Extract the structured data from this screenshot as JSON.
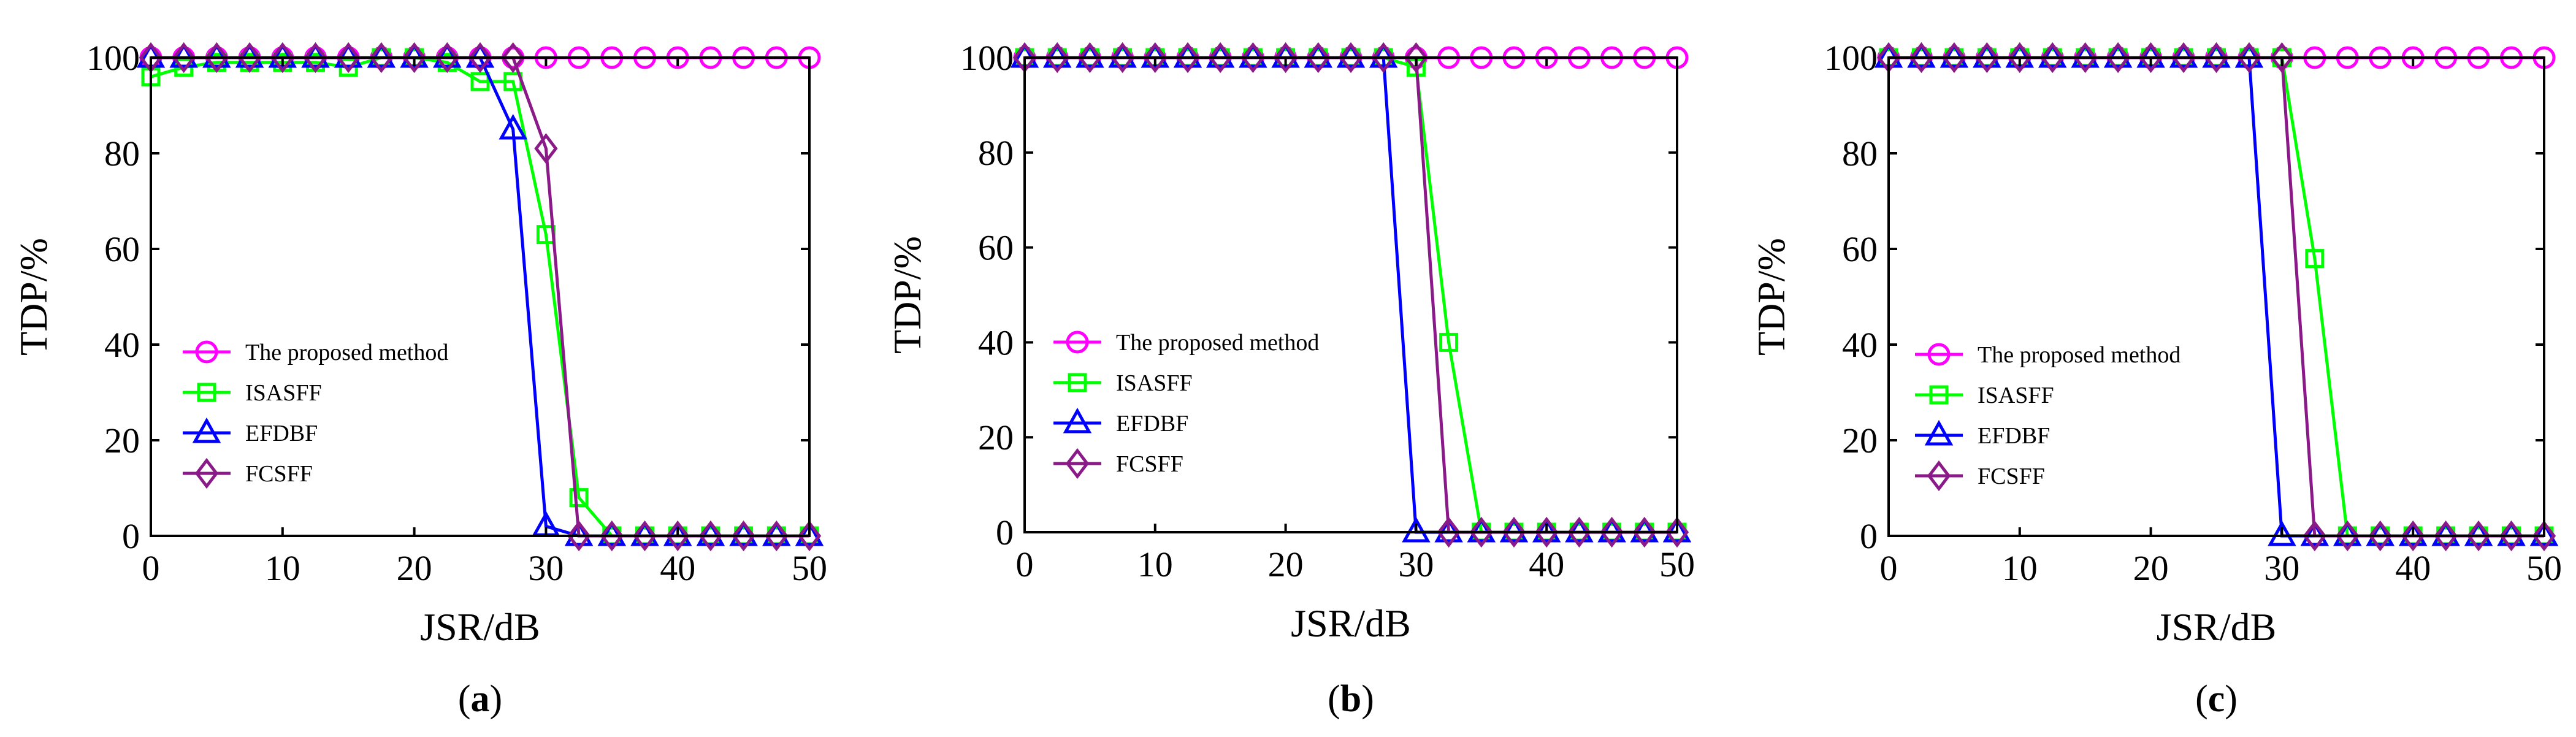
{
  "chart_data": [
    {
      "type": "line",
      "caption": {
        "open": "(",
        "letter": "a",
        "close": ")"
      },
      "xlabel": "JSR/dB",
      "ylabel": "TDP/%",
      "xlim": [
        0,
        50
      ],
      "ylim": [
        0,
        100
      ],
      "xticks": [
        0,
        10,
        20,
        30,
        40,
        50
      ],
      "yticks": [
        0,
        20,
        40,
        60,
        80,
        100
      ],
      "grid": false,
      "legend_position": "left",
      "series": [
        {
          "name": "The proposed method",
          "color": "#ff00ff",
          "marker": "circle",
          "x": [
            0,
            2.5,
            5,
            7.5,
            10,
            12.5,
            15,
            17.5,
            20,
            22.5,
            25,
            27.5,
            30,
            32.5,
            35,
            37.5,
            40,
            42.5,
            45,
            47.5,
            50
          ],
          "y": [
            100,
            100,
            100,
            100,
            100,
            100,
            100,
            100,
            100,
            100,
            100,
            100,
            100,
            100,
            100,
            100,
            100,
            100,
            100,
            100,
            100
          ]
        },
        {
          "name": "ISASFF",
          "color": "#00ff00",
          "marker": "square",
          "x": [
            0,
            2.5,
            5,
            7.5,
            10,
            12.5,
            15,
            17.5,
            20,
            22.5,
            25,
            27.5,
            30,
            32.5,
            35,
            37.5,
            40,
            42.5,
            45,
            47.5,
            50
          ],
          "y": [
            96,
            98,
            99,
            99,
            99,
            99,
            98,
            100,
            100,
            99,
            95,
            95,
            63,
            8,
            0,
            0,
            0,
            0,
            0,
            0,
            0
          ]
        },
        {
          "name": "EFDBF",
          "color": "#0000ff",
          "marker": "triangle",
          "x": [
            0,
            2.5,
            5,
            7.5,
            10,
            12.5,
            15,
            17.5,
            20,
            22.5,
            25,
            27.5,
            30,
            32.5,
            35,
            37.5,
            40,
            42.5,
            45,
            47.5,
            50
          ],
          "y": [
            100,
            100,
            100,
            100,
            100,
            100,
            100,
            100,
            100,
            100,
            100,
            85,
            2,
            0,
            0,
            0,
            0,
            0,
            0,
            0,
            0
          ]
        },
        {
          "name": "FCSFF",
          "color": "#8b1a89",
          "marker": "diamond",
          "x": [
            0,
            2.5,
            5,
            7.5,
            10,
            12.5,
            15,
            17.5,
            20,
            22.5,
            25,
            27.5,
            30,
            32.5,
            35,
            37.5,
            40,
            42.5,
            45,
            47.5,
            50
          ],
          "y": [
            100,
            100,
            100,
            100,
            100,
            100,
            100,
            100,
            100,
            100,
            100,
            100,
            81,
            0,
            0,
            0,
            0,
            0,
            0,
            0,
            0
          ]
        }
      ]
    },
    {
      "type": "line",
      "caption": {
        "open": "(",
        "letter": "b",
        "close": ")"
      },
      "xlabel": "JSR/dB",
      "ylabel": "TDP/%",
      "xlim": [
        0,
        50
      ],
      "ylim": [
        0,
        100
      ],
      "xticks": [
        0,
        10,
        20,
        30,
        40,
        50
      ],
      "yticks": [
        0,
        20,
        40,
        60,
        80,
        100
      ],
      "grid": false,
      "legend_position": "left",
      "series": [
        {
          "name": "The proposed method",
          "color": "#ff00ff",
          "marker": "circle",
          "x": [
            0,
            2.5,
            5,
            7.5,
            10,
            12.5,
            15,
            17.5,
            20,
            22.5,
            25,
            27.5,
            30,
            32.5,
            35,
            37.5,
            40,
            42.5,
            45,
            47.5,
            50
          ],
          "y": [
            100,
            100,
            100,
            100,
            100,
            100,
            100,
            100,
            100,
            100,
            100,
            100,
            100,
            100,
            100,
            100,
            100,
            100,
            100,
            100,
            100
          ]
        },
        {
          "name": "ISASFF",
          "color": "#00ff00",
          "marker": "square",
          "x": [
            0,
            2.5,
            5,
            7.5,
            10,
            12.5,
            15,
            17.5,
            20,
            22.5,
            25,
            27.5,
            30,
            32.5,
            35,
            37.5,
            40,
            42.5,
            45,
            47.5,
            50
          ],
          "y": [
            100,
            100,
            100,
            100,
            100,
            100,
            100,
            100,
            100,
            100,
            100,
            100,
            98,
            40,
            0,
            0,
            0,
            0,
            0,
            0,
            0
          ]
        },
        {
          "name": "EFDBF",
          "color": "#0000ff",
          "marker": "triangle",
          "x": [
            0,
            2.5,
            5,
            7.5,
            10,
            12.5,
            15,
            17.5,
            20,
            22.5,
            25,
            27.5,
            30,
            32.5,
            35,
            37.5,
            40,
            42.5,
            45,
            47.5,
            50
          ],
          "y": [
            100,
            100,
            100,
            100,
            100,
            100,
            100,
            100,
            100,
            100,
            100,
            100,
            0,
            0,
            0,
            0,
            0,
            0,
            0,
            0,
            0
          ]
        },
        {
          "name": "FCSFF",
          "color": "#8b1a89",
          "marker": "diamond",
          "x": [
            0,
            2.5,
            5,
            7.5,
            10,
            12.5,
            15,
            17.5,
            20,
            22.5,
            25,
            27.5,
            30,
            32.5,
            35,
            37.5,
            40,
            42.5,
            45,
            47.5,
            50
          ],
          "y": [
            100,
            100,
            100,
            100,
            100,
            100,
            100,
            100,
            100,
            100,
            100,
            100,
            100,
            0,
            0,
            0,
            0,
            0,
            0,
            0,
            0
          ]
        }
      ]
    },
    {
      "type": "line",
      "caption": {
        "open": "(",
        "letter": "c",
        "close": ")"
      },
      "xlabel": "JSR/dB",
      "ylabel": "TDP/%",
      "xlim": [
        0,
        50
      ],
      "ylim": [
        0,
        100
      ],
      "xticks": [
        0,
        10,
        20,
        30,
        40,
        50
      ],
      "yticks": [
        0,
        20,
        40,
        60,
        80,
        100
      ],
      "grid": false,
      "legend_position": "left",
      "series": [
        {
          "name": "The proposed method",
          "color": "#ff00ff",
          "marker": "circle",
          "x": [
            0,
            2.5,
            5,
            7.5,
            10,
            12.5,
            15,
            17.5,
            20,
            22.5,
            25,
            27.5,
            30,
            32.5,
            35,
            37.5,
            40,
            42.5,
            45,
            47.5,
            50
          ],
          "y": [
            100,
            100,
            100,
            100,
            100,
            100,
            100,
            100,
            100,
            100,
            100,
            100,
            100,
            100,
            100,
            100,
            100,
            100,
            100,
            100,
            100
          ]
        },
        {
          "name": "ISASFF",
          "color": "#00ff00",
          "marker": "square",
          "x": [
            0,
            2.5,
            5,
            7.5,
            10,
            12.5,
            15,
            17.5,
            20,
            22.5,
            25,
            27.5,
            30,
            32.5,
            35,
            37.5,
            40,
            42.5,
            45,
            47.5,
            50
          ],
          "y": [
            100,
            100,
            100,
            100,
            100,
            100,
            100,
            100,
            100,
            100,
            100,
            100,
            100,
            58,
            0,
            0,
            0,
            0,
            0,
            0,
            0
          ]
        },
        {
          "name": "EFDBF",
          "color": "#0000ff",
          "marker": "triangle",
          "x": [
            0,
            2.5,
            5,
            7.5,
            10,
            12.5,
            15,
            17.5,
            20,
            22.5,
            25,
            27.5,
            30,
            32.5,
            35,
            37.5,
            40,
            42.5,
            45,
            47.5,
            50
          ],
          "y": [
            100,
            100,
            100,
            100,
            100,
            100,
            100,
            100,
            100,
            100,
            100,
            100,
            0,
            0,
            0,
            0,
            0,
            0,
            0,
            0,
            0
          ]
        },
        {
          "name": "FCSFF",
          "color": "#8b1a89",
          "marker": "diamond",
          "x": [
            0,
            2.5,
            5,
            7.5,
            10,
            12.5,
            15,
            17.5,
            20,
            22.5,
            25,
            27.5,
            30,
            32.5,
            35,
            37.5,
            40,
            42.5,
            45,
            47.5,
            50
          ],
          "y": [
            100,
            100,
            100,
            100,
            100,
            100,
            100,
            100,
            100,
            100,
            100,
            100,
            100,
            0,
            0,
            0,
            0,
            0,
            0,
            0,
            0
          ]
        }
      ]
    }
  ]
}
